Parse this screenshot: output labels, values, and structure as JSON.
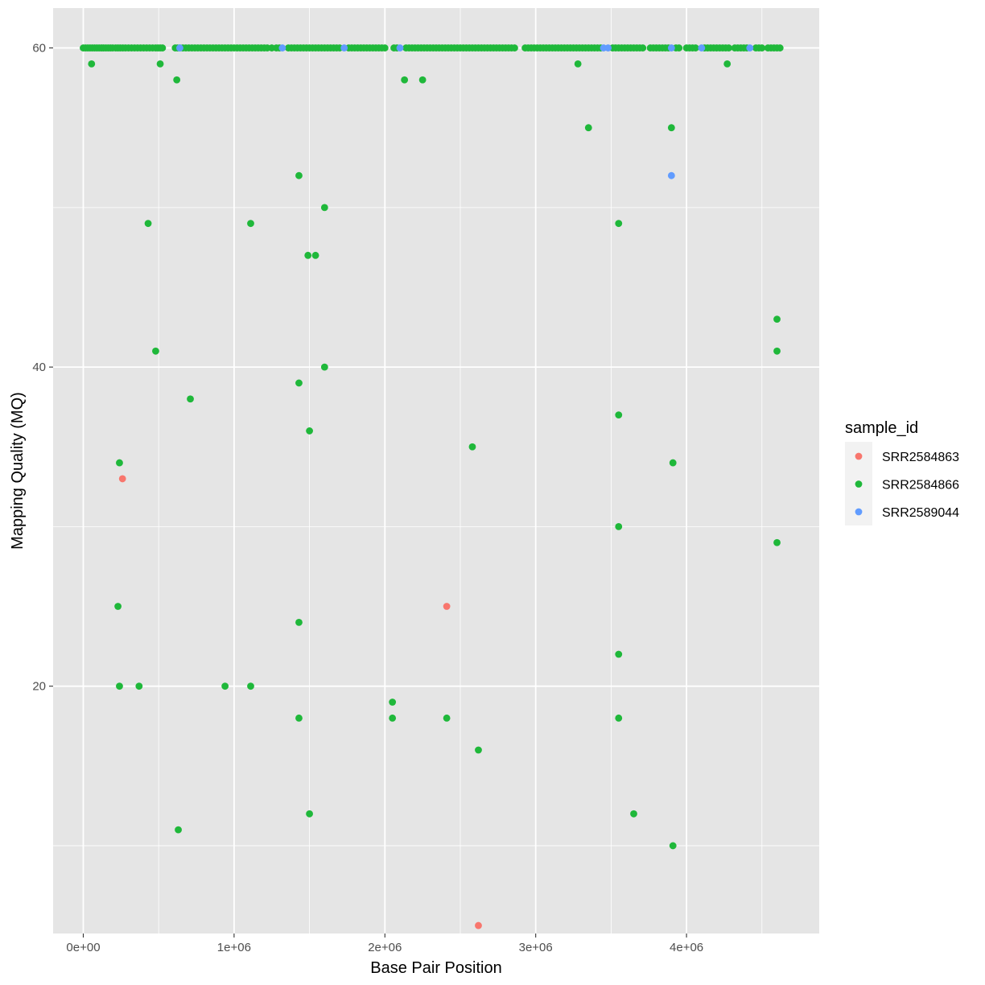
{
  "chart_data": {
    "type": "scatter",
    "title": "",
    "xlabel": "Base Pair Position",
    "ylabel": "Mapping Quality (MQ)",
    "xlim": [
      -200000,
      4880000
    ],
    "ylim": [
      4.5,
      62.5
    ],
    "x_ticks": [
      {
        "value": 0,
        "label": "0e+00"
      },
      {
        "value": 1000000,
        "label": "1e+06"
      },
      {
        "value": 2000000,
        "label": "2e+06"
      },
      {
        "value": 3000000,
        "label": "3e+06"
      },
      {
        "value": 4000000,
        "label": "4e+06"
      }
    ],
    "y_ticks": [
      {
        "value": 20,
        "label": "20"
      },
      {
        "value": 40,
        "label": "40"
      },
      {
        "value": 60,
        "label": "60"
      }
    ],
    "x_minor_ticks": [
      500000,
      1500000,
      2500000,
      3500000,
      4500000
    ],
    "y_minor_ticks": [
      10,
      30,
      50
    ],
    "grid": true,
    "panel_background": "#e5e5e5",
    "legend": {
      "title": "sample_id",
      "placement": "right"
    },
    "series": [
      {
        "name": "SRR2584863",
        "color": "#f8766d",
        "points": [
          [
            260000,
            33
          ],
          [
            2410000,
            25
          ],
          [
            2620000,
            5
          ]
        ]
      },
      {
        "name": "SRR2584866",
        "color": "#1fb83a",
        "points": [
          [
            0,
            60
          ],
          [
            15000,
            60
          ],
          [
            30000,
            60
          ],
          [
            45000,
            60
          ],
          [
            60000,
            60
          ],
          [
            75000,
            60
          ],
          [
            90000,
            60
          ],
          [
            105000,
            60
          ],
          [
            120000,
            60
          ],
          [
            135000,
            60
          ],
          [
            150000,
            60
          ],
          [
            165000,
            60
          ],
          [
            180000,
            60
          ],
          [
            195000,
            60
          ],
          [
            215000,
            60
          ],
          [
            230000,
            60
          ],
          [
            245000,
            60
          ],
          [
            262000,
            60
          ],
          [
            280000,
            60
          ],
          [
            300000,
            60
          ],
          [
            320000,
            60
          ],
          [
            340000,
            60
          ],
          [
            360000,
            60
          ],
          [
            380000,
            60
          ],
          [
            400000,
            60
          ],
          [
            420000,
            60
          ],
          [
            440000,
            60
          ],
          [
            460000,
            60
          ],
          [
            480000,
            60
          ],
          [
            495000,
            60
          ],
          [
            510000,
            60
          ],
          [
            525000,
            60
          ],
          [
            610000,
            60
          ],
          [
            625000,
            60
          ],
          [
            640000,
            60
          ],
          [
            660000,
            60
          ],
          [
            680000,
            60
          ],
          [
            700000,
            60
          ],
          [
            720000,
            60
          ],
          [
            740000,
            60
          ],
          [
            760000,
            60
          ],
          [
            780000,
            60
          ],
          [
            800000,
            60
          ],
          [
            820000,
            60
          ],
          [
            840000,
            60
          ],
          [
            860000,
            60
          ],
          [
            880000,
            60
          ],
          [
            900000,
            60
          ],
          [
            920000,
            60
          ],
          [
            940000,
            60
          ],
          [
            960000,
            60
          ],
          [
            980000,
            60
          ],
          [
            1000000,
            60
          ],
          [
            1020000,
            60
          ],
          [
            1040000,
            60
          ],
          [
            1060000,
            60
          ],
          [
            1080000,
            60
          ],
          [
            1100000,
            60
          ],
          [
            1120000,
            60
          ],
          [
            1140000,
            60
          ],
          [
            1160000,
            60
          ],
          [
            1180000,
            60
          ],
          [
            1200000,
            60
          ],
          [
            1220000,
            60
          ],
          [
            1250000,
            60
          ],
          [
            1280000,
            60
          ],
          [
            1300000,
            60
          ],
          [
            1360000,
            60
          ],
          [
            1380000,
            60
          ],
          [
            1400000,
            60
          ],
          [
            1420000,
            60
          ],
          [
            1440000,
            60
          ],
          [
            1460000,
            60
          ],
          [
            1480000,
            60
          ],
          [
            1500000,
            60
          ],
          [
            1520000,
            60
          ],
          [
            1540000,
            60
          ],
          [
            1560000,
            60
          ],
          [
            1580000,
            60
          ],
          [
            1600000,
            60
          ],
          [
            1620000,
            60
          ],
          [
            1640000,
            60
          ],
          [
            1660000,
            60
          ],
          [
            1680000,
            60
          ],
          [
            1700000,
            60
          ],
          [
            1760000,
            60
          ],
          [
            1780000,
            60
          ],
          [
            1800000,
            60
          ],
          [
            1820000,
            60
          ],
          [
            1840000,
            60
          ],
          [
            1860000,
            60
          ],
          [
            1880000,
            60
          ],
          [
            1900000,
            60
          ],
          [
            1920000,
            60
          ],
          [
            1940000,
            60
          ],
          [
            1960000,
            60
          ],
          [
            1980000,
            60
          ],
          [
            2000000,
            60
          ],
          [
            2060000,
            60
          ],
          [
            2080000,
            60
          ],
          [
            2140000,
            60
          ],
          [
            2160000,
            60
          ],
          [
            2180000,
            60
          ],
          [
            2200000,
            60
          ],
          [
            2220000,
            60
          ],
          [
            2240000,
            60
          ],
          [
            2260000,
            60
          ],
          [
            2280000,
            60
          ],
          [
            2300000,
            60
          ],
          [
            2320000,
            60
          ],
          [
            2340000,
            60
          ],
          [
            2360000,
            60
          ],
          [
            2380000,
            60
          ],
          [
            2400000,
            60
          ],
          [
            2420000,
            60
          ],
          [
            2440000,
            60
          ],
          [
            2460000,
            60
          ],
          [
            2480000,
            60
          ],
          [
            2500000,
            60
          ],
          [
            2520000,
            60
          ],
          [
            2540000,
            60
          ],
          [
            2560000,
            60
          ],
          [
            2580000,
            60
          ],
          [
            2600000,
            60
          ],
          [
            2620000,
            60
          ],
          [
            2640000,
            60
          ],
          [
            2660000,
            60
          ],
          [
            2680000,
            60
          ],
          [
            2700000,
            60
          ],
          [
            2720000,
            60
          ],
          [
            2740000,
            60
          ],
          [
            2760000,
            60
          ],
          [
            2780000,
            60
          ],
          [
            2800000,
            60
          ],
          [
            2820000,
            60
          ],
          [
            2840000,
            60
          ],
          [
            2860000,
            60
          ],
          [
            2930000,
            60
          ],
          [
            2950000,
            60
          ],
          [
            2970000,
            60
          ],
          [
            2990000,
            60
          ],
          [
            3010000,
            60
          ],
          [
            3030000,
            60
          ],
          [
            3050000,
            60
          ],
          [
            3070000,
            60
          ],
          [
            3090000,
            60
          ],
          [
            3110000,
            60
          ],
          [
            3130000,
            60
          ],
          [
            3150000,
            60
          ],
          [
            3170000,
            60
          ],
          [
            3190000,
            60
          ],
          [
            3210000,
            60
          ],
          [
            3230000,
            60
          ],
          [
            3250000,
            60
          ],
          [
            3270000,
            60
          ],
          [
            3290000,
            60
          ],
          [
            3310000,
            60
          ],
          [
            3330000,
            60
          ],
          [
            3350000,
            60
          ],
          [
            3370000,
            60
          ],
          [
            3390000,
            60
          ],
          [
            3410000,
            60
          ],
          [
            3430000,
            60
          ],
          [
            3510000,
            60
          ],
          [
            3530000,
            60
          ],
          [
            3550000,
            60
          ],
          [
            3570000,
            60
          ],
          [
            3590000,
            60
          ],
          [
            3610000,
            60
          ],
          [
            3630000,
            60
          ],
          [
            3650000,
            60
          ],
          [
            3670000,
            60
          ],
          [
            3690000,
            60
          ],
          [
            3710000,
            60
          ],
          [
            3760000,
            60
          ],
          [
            3780000,
            60
          ],
          [
            3800000,
            60
          ],
          [
            3820000,
            60
          ],
          [
            3840000,
            60
          ],
          [
            3860000,
            60
          ],
          [
            3880000,
            60
          ],
          [
            3930000,
            60
          ],
          [
            3950000,
            60
          ],
          [
            4000000,
            60
          ],
          [
            4020000,
            60
          ],
          [
            4040000,
            60
          ],
          [
            4060000,
            60
          ],
          [
            4120000,
            60
          ],
          [
            4140000,
            60
          ],
          [
            4160000,
            60
          ],
          [
            4180000,
            60
          ],
          [
            4200000,
            60
          ],
          [
            4220000,
            60
          ],
          [
            4240000,
            60
          ],
          [
            4260000,
            60
          ],
          [
            4280000,
            60
          ],
          [
            4320000,
            60
          ],
          [
            4340000,
            60
          ],
          [
            4360000,
            60
          ],
          [
            4380000,
            60
          ],
          [
            4400000,
            60
          ],
          [
            4460000,
            60
          ],
          [
            4480000,
            60
          ],
          [
            4500000,
            60
          ],
          [
            4540000,
            60
          ],
          [
            4560000,
            60
          ],
          [
            4580000,
            60
          ],
          [
            4600000,
            60
          ],
          [
            4620000,
            60
          ],
          [
            55000,
            59
          ],
          [
            510000,
            59
          ],
          [
            3280000,
            59
          ],
          [
            4270000,
            59
          ],
          [
            620000,
            58
          ],
          [
            2130000,
            58
          ],
          [
            2250000,
            58
          ],
          [
            3350000,
            55
          ],
          [
            3900000,
            55
          ],
          [
            1430000,
            52
          ],
          [
            1600000,
            50
          ],
          [
            430000,
            49
          ],
          [
            1110000,
            49
          ],
          [
            3550000,
            49
          ],
          [
            1490000,
            47
          ],
          [
            1540000,
            47
          ],
          [
            4600000,
            43
          ],
          [
            480000,
            41
          ],
          [
            4600000,
            41
          ],
          [
            1600000,
            40
          ],
          [
            1430000,
            39
          ],
          [
            710000,
            38
          ],
          [
            3550000,
            37
          ],
          [
            1500000,
            36
          ],
          [
            2580000,
            35
          ],
          [
            240000,
            34
          ],
          [
            3910000,
            34
          ],
          [
            3550000,
            30
          ],
          [
            4600000,
            29
          ],
          [
            230000,
            25
          ],
          [
            1430000,
            24
          ],
          [
            3550000,
            22
          ],
          [
            240000,
            20
          ],
          [
            370000,
            20
          ],
          [
            940000,
            20
          ],
          [
            1110000,
            20
          ],
          [
            2050000,
            19
          ],
          [
            1430000,
            18
          ],
          [
            2050000,
            18
          ],
          [
            2410000,
            18
          ],
          [
            3550000,
            18
          ],
          [
            2620000,
            16
          ],
          [
            1500000,
            12
          ],
          [
            3650000,
            12
          ],
          [
            630000,
            11
          ],
          [
            3910000,
            10
          ]
        ]
      },
      {
        "name": "SRR2589044",
        "color": "#619cff",
        "points": [
          [
            640000,
            60
          ],
          [
            1320000,
            60
          ],
          [
            1730000,
            60
          ],
          [
            2100000,
            60
          ],
          [
            3450000,
            60
          ],
          [
            3480000,
            60
          ],
          [
            3900000,
            60
          ],
          [
            4100000,
            60
          ],
          [
            4420000,
            60
          ],
          [
            3900000,
            52
          ]
        ]
      }
    ]
  }
}
